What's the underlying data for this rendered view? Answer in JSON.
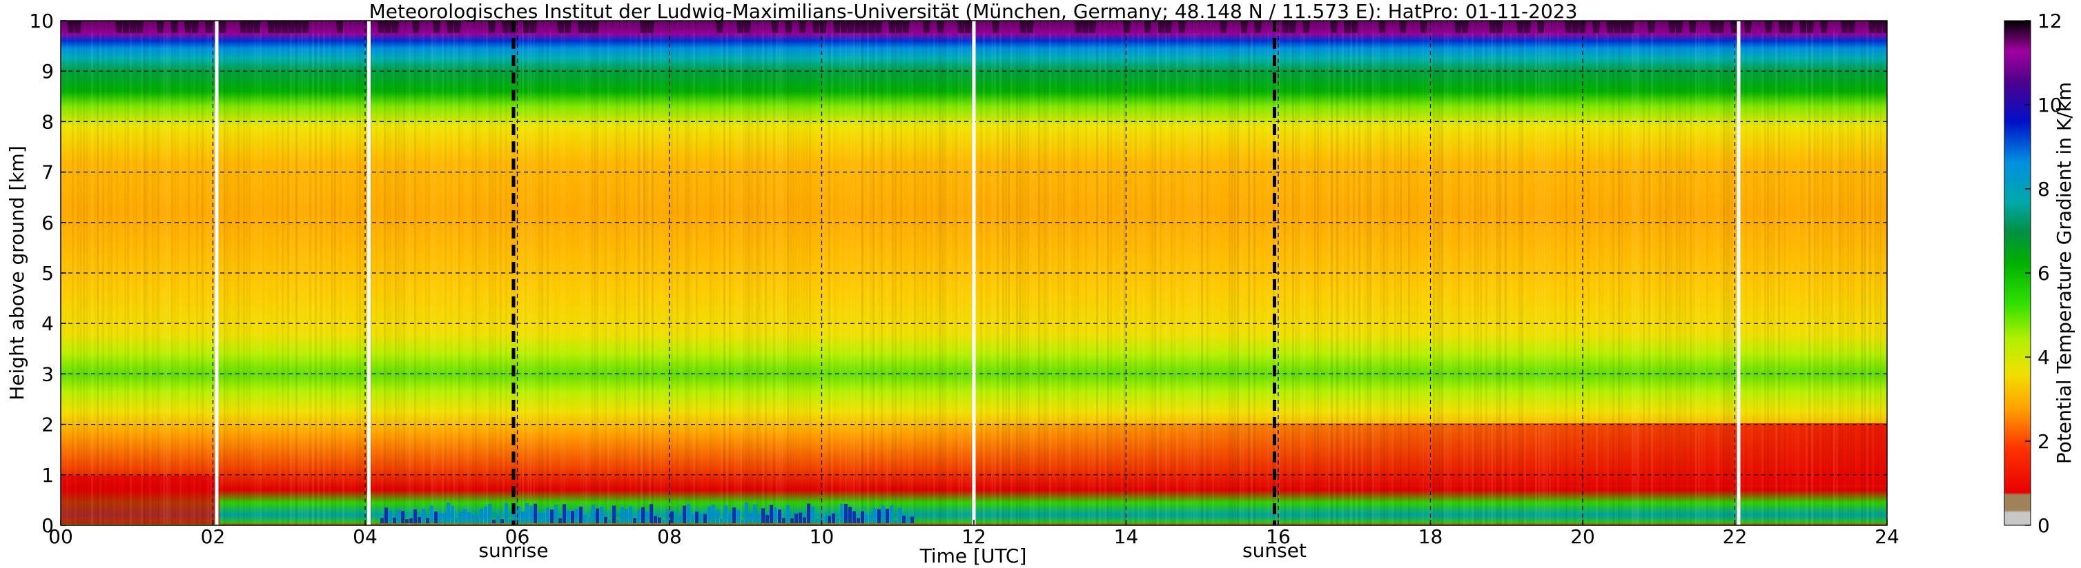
{
  "chart_data": {
    "type": "heatmap",
    "title": "Meteorologisches Institut der Ludwig-Maximilians-Universität (München, Germany; 48.148 N / 11.573 E):    HatPro: 01-11-2023",
    "xlabel": "Time [UTC]",
    "ylabel": "Height above ground [km]",
    "xlim": [
      0,
      24
    ],
    "ylim": [
      0,
      10
    ],
    "x_ticks": [
      "00",
      "02",
      "04",
      "06",
      "08",
      "10",
      "12",
      "14",
      "16",
      "18",
      "20",
      "22",
      "24"
    ],
    "y_ticks": [
      "0",
      "1",
      "2",
      "3",
      "4",
      "5",
      "6",
      "7",
      "8",
      "9",
      "10"
    ],
    "grid": true,
    "colorbar": {
      "label": "Potential Temperature Gradient in K/km",
      "range": [
        0,
        12
      ],
      "ticks": [
        "0",
        "2",
        "4",
        "6",
        "8",
        "10",
        "12"
      ],
      "colors": [
        "#c8c8c8",
        "#a0825a",
        "#e80000",
        "#ff5a00",
        "#ffaa00",
        "#f0e000",
        "#c8f000",
        "#50e000",
        "#00a800",
        "#00b0b0",
        "#0090e0",
        "#0000c8",
        "#50008c",
        "#a000a0",
        "#000000"
      ]
    },
    "annotations": {
      "sunrise": {
        "label": "sunrise",
        "time": 5.95
      },
      "sunset": {
        "label": "sunset",
        "time": 15.95
      },
      "data_gaps": [
        2.05,
        4.05,
        12.0,
        22.05
      ]
    },
    "profile_description_by_height_km": [
      {
        "height_range": [
          0.0,
          0.1
        ],
        "value_approx": 0.5
      },
      {
        "height_range": [
          0.1,
          0.7
        ],
        "value_approx": 6.5
      },
      {
        "height_range": [
          0.7,
          2.0
        ],
        "value_approx": 2.0
      },
      {
        "height_range": [
          2.0,
          2.4
        ],
        "value_approx": 3.5
      },
      {
        "height_range": [
          2.4,
          3.6
        ],
        "value_approx": 4.6
      },
      {
        "height_range": [
          3.6,
          8.0
        ],
        "value_approx": 3.0
      },
      {
        "height_range": [
          8.0,
          8.6
        ],
        "value_approx": 4.5
      },
      {
        "height_range": [
          8.6,
          9.3
        ],
        "value_approx": 6.2
      },
      {
        "height_range": [
          9.3,
          9.7
        ],
        "value_approx": 8.5
      },
      {
        "height_range": [
          9.7,
          10.0
        ],
        "value_approx": 11.0
      }
    ]
  }
}
